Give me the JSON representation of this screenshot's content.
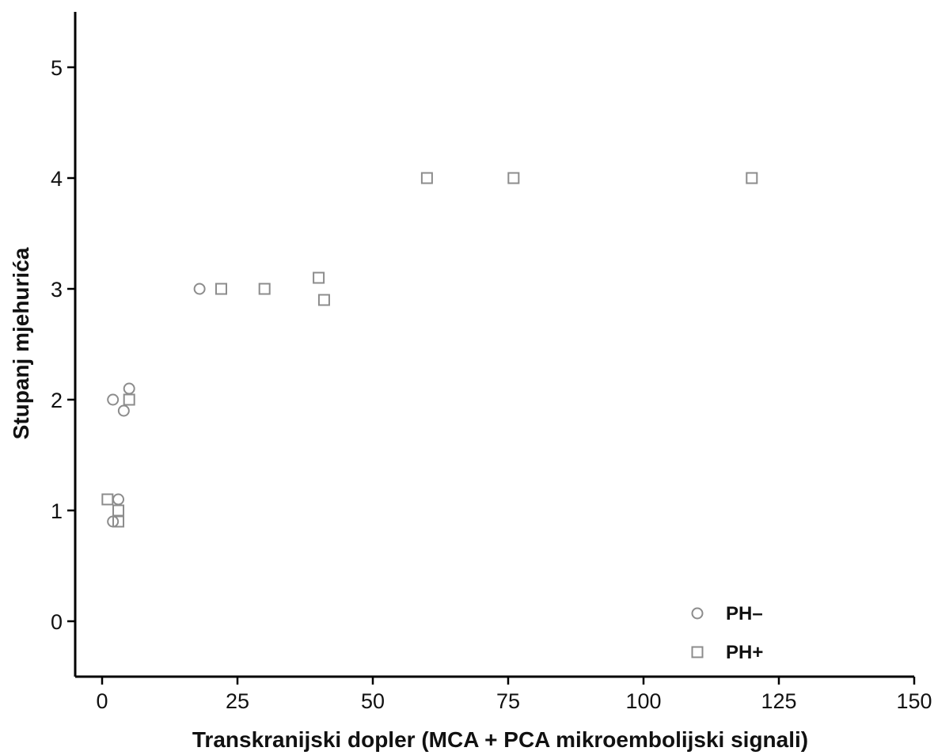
{
  "chart_data": {
    "type": "scatter",
    "xlabel": "Transkranijski dopler (MCA + PCA mikroembolijski  signali)",
    "ylabel": "Stupanj mjehurića",
    "xlim": [
      -5,
      150
    ],
    "ylim": [
      -0.5,
      5.5
    ],
    "x_ticks": [
      0,
      25,
      50,
      75,
      100,
      125,
      150
    ],
    "y_ticks": [
      0,
      1,
      2,
      3,
      4,
      5
    ],
    "grid": false,
    "legend_position": "bottom-right",
    "series": [
      {
        "name": "PH–",
        "marker": "circle",
        "color": "#8c8c8c",
        "points": [
          {
            "x": 2,
            "y": 2.0
          },
          {
            "x": 4,
            "y": 1.9
          },
          {
            "x": 5,
            "y": 2.1
          },
          {
            "x": 2,
            "y": 0.9
          },
          {
            "x": 3,
            "y": 1.1
          },
          {
            "x": 18,
            "y": 3.0
          }
        ]
      },
      {
        "name": "PH+",
        "marker": "square",
        "color": "#8c8c8c",
        "points": [
          {
            "x": 1,
            "y": 1.1
          },
          {
            "x": 3,
            "y": 1.0
          },
          {
            "x": 3,
            "y": 0.9
          },
          {
            "x": 5,
            "y": 2.0
          },
          {
            "x": 22,
            "y": 3.0
          },
          {
            "x": 30,
            "y": 3.0
          },
          {
            "x": 40,
            "y": 3.1
          },
          {
            "x": 41,
            "y": 2.9
          },
          {
            "x": 60,
            "y": 4.0
          },
          {
            "x": 76,
            "y": 4.0
          },
          {
            "x": 120,
            "y": 4.0
          }
        ]
      }
    ]
  }
}
